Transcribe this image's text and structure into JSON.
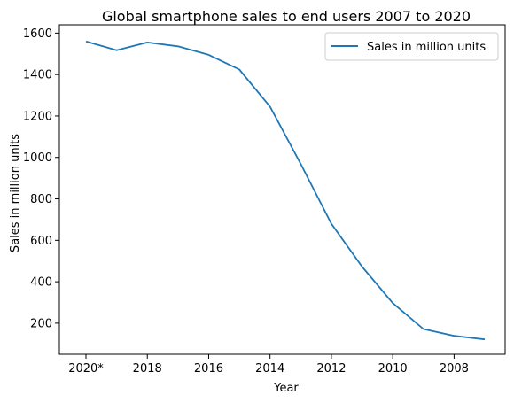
{
  "chart_data": {
    "type": "line",
    "title": "Global smartphone sales to end users 2007 to 2020",
    "xlabel": "Year",
    "ylabel": "Sales in million units",
    "x": [
      "2020*",
      "2019",
      "2018",
      "2017",
      "2016",
      "2015",
      "2014",
      "2013",
      "2012",
      "2011",
      "2010",
      "2009",
      "2008",
      "2007"
    ],
    "xticks": [
      "2020*",
      "2018",
      "2016",
      "2014",
      "2012",
      "2010",
      "2008"
    ],
    "yticks": [
      200,
      400,
      600,
      800,
      1000,
      1200,
      1400,
      1600
    ],
    "ylim": [
      50,
      1640
    ],
    "series": [
      {
        "name": "Sales in million units",
        "color": "#1f77b4",
        "values": [
          1560,
          1517,
          1555,
          1536,
          1495,
          1424,
          1245,
          969,
          680,
          473,
          297,
          172,
          139,
          122
        ]
      }
    ],
    "legend_position": "top-right",
    "grid": false
  }
}
